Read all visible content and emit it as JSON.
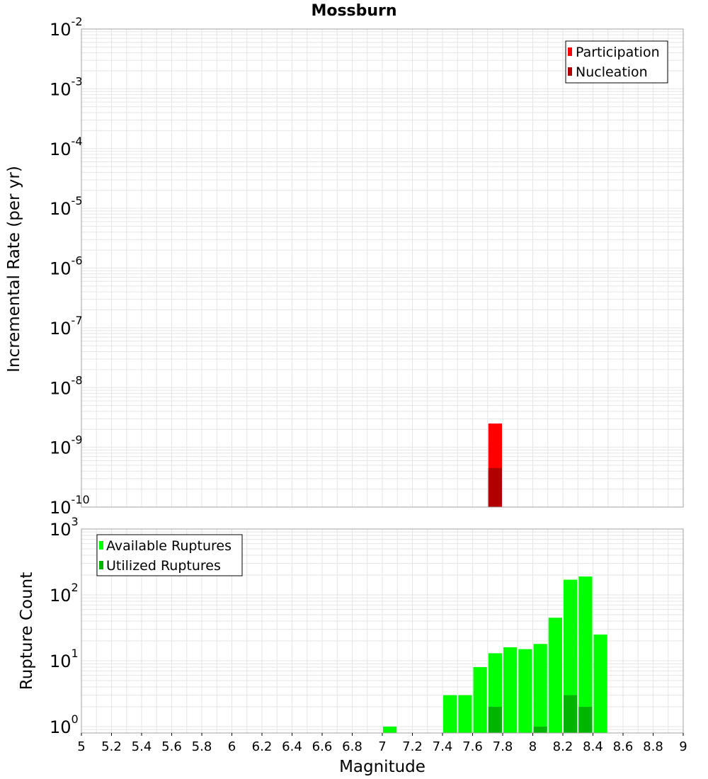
{
  "title": "Mossburn",
  "colors": {
    "participation": "#ff0000",
    "nucleation": "#b00000",
    "available": "#00ff00",
    "utilized": "#00b400",
    "grid": "#e6e6e6",
    "axis_border": "#a0a0a0"
  },
  "chart_data": [
    {
      "type": "bar",
      "scale": "log",
      "ylabel": "Incremental Rate (per yr)",
      "ylim": [
        1e-10,
        0.01
      ],
      "y_tick_exponents": [
        "-2",
        "-3",
        "-4",
        "-5",
        "-6",
        "-7",
        "-8",
        "-9",
        "-10"
      ],
      "y_tick_base": "10",
      "legend": {
        "position": "top-right",
        "items": [
          "Participation",
          "Nucleation"
        ]
      },
      "series": [
        {
          "name": "Participation",
          "x": [
            7.75
          ],
          "values": [
            2.5e-09
          ]
        },
        {
          "name": "Nucleation",
          "x": [
            7.75
          ],
          "values": [
            4.5e-10
          ]
        }
      ]
    },
    {
      "type": "bar",
      "scale": "log",
      "ylabel": "Rupture Count",
      "xlabel": "Magnitude",
      "ylim": [
        0.8,
        1000
      ],
      "y_tick_exponents": [
        "3",
        "2",
        "1",
        "0"
      ],
      "y_tick_base": "10",
      "xlim": [
        5,
        9
      ],
      "x_ticks": [
        "5",
        "5.2",
        "5.4",
        "5.6",
        "5.8",
        "6",
        "6.2",
        "6.4",
        "6.6",
        "6.8",
        "7",
        "7.2",
        "7.4",
        "7.6",
        "7.8",
        "8",
        "8.2",
        "8.4",
        "8.6",
        "8.8",
        "9"
      ],
      "legend": {
        "position": "top-left",
        "items": [
          "Available Ruptures",
          "Utilized Ruptures"
        ]
      },
      "series": [
        {
          "name": "Available Ruptures",
          "x": [
            7.05,
            7.45,
            7.55,
            7.65,
            7.75,
            7.85,
            7.95,
            8.05,
            8.15,
            8.25,
            8.35,
            8.45
          ],
          "values": [
            1,
            3,
            3,
            8,
            13,
            16,
            15,
            18,
            45,
            170,
            190,
            25
          ]
        },
        {
          "name": "Utilized Ruptures",
          "x": [
            7.75,
            8.05,
            8.25,
            8.35
          ],
          "values": [
            2,
            1,
            3,
            2
          ]
        }
      ]
    }
  ]
}
